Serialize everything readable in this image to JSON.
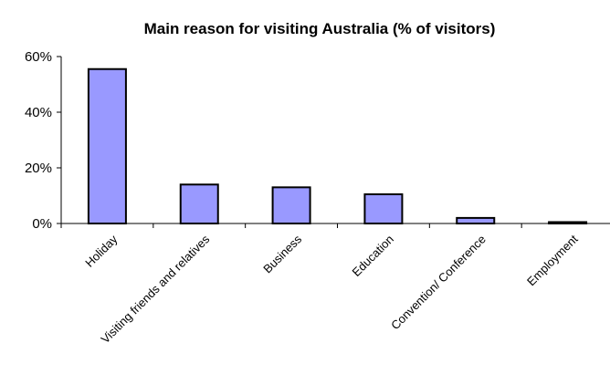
{
  "chart_data": {
    "type": "bar",
    "title": "Main reason for visiting Australia (% of visitors)",
    "xlabel": "",
    "ylabel": "",
    "categories": [
      "Holiday",
      "Visiting friends and relatives",
      "Business",
      "Education",
      "Convention/ Conference",
      "Employment"
    ],
    "values": [
      55.5,
      14,
      13,
      10.5,
      2,
      0.5
    ],
    "ylim": [
      0,
      60
    ],
    "yticks": [
      0,
      20,
      40,
      60
    ],
    "ytick_labels": [
      "0%",
      "20%",
      "40%",
      "60%"
    ],
    "grid": false,
    "legend": "none",
    "bar_color": "#9999ff",
    "bar_edge_color": "#000000"
  }
}
